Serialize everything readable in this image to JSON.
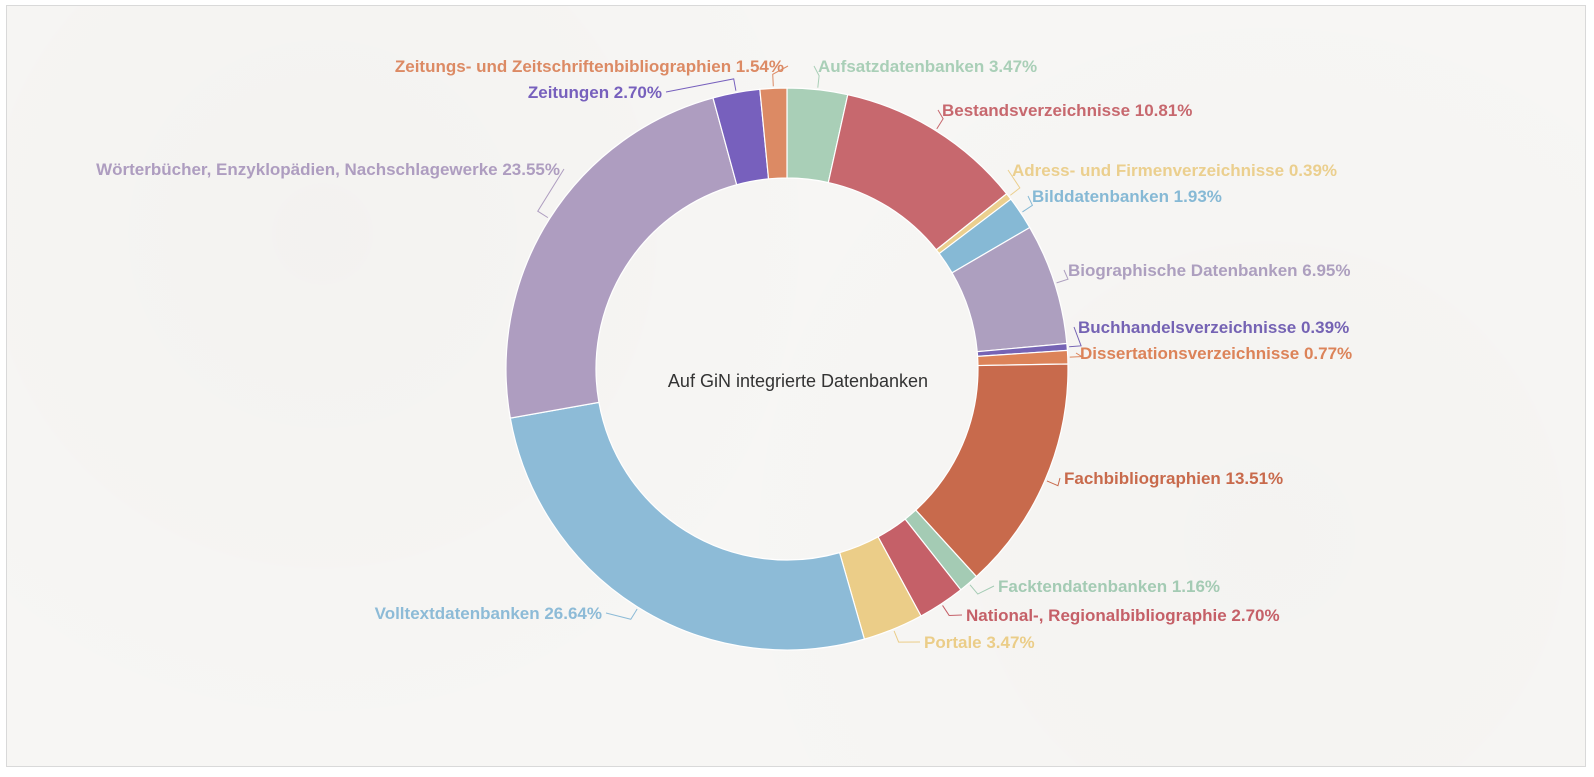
{
  "chart_data": {
    "type": "pie",
    "title": "Auf GiN integrierte Datenbanken",
    "slices": [
      {
        "label": "Aufsatzdatenbanken",
        "value": 3.47,
        "display": "Aufsatzdatenbanken 3.47%",
        "color": "#a9cfb7"
      },
      {
        "label": "Bestandsverzeichnisse",
        "value": 10.81,
        "display": "Bestandsverzeichnisse 10.81%",
        "color": "#c7686e"
      },
      {
        "label": "Adress- und Firmenverzeichnisse",
        "value": 0.39,
        "display": "Adress- und Firmenverzeichnisse 0.39%",
        "color": "#ebcf8e"
      },
      {
        "label": "Bilddatenbanken",
        "value": 1.93,
        "display": "Bilddatenbanken 1.93%",
        "color": "#86b9d5"
      },
      {
        "label": "Biographische Datenbanken",
        "value": 6.95,
        "display": "Biographische Datenbanken 6.95%",
        "color": "#ad9fbf"
      },
      {
        "label": "Buchhandelsverzeichnisse",
        "value": 0.39,
        "display": "Buchhandelsverzeichnisse 0.39%",
        "color": "#7563b4"
      },
      {
        "label": "Dissertationsverzeichnisse",
        "value": 0.77,
        "display": "Dissertationsverzeichnisse 0.77%",
        "color": "#dc8359"
      },
      {
        "label": "Fachbibliographien",
        "value": 13.51,
        "display": "Fachbibliographien 13.51%",
        "color": "#c86a4c"
      },
      {
        "label": "Facktendatenbanken",
        "value": 1.16,
        "display": "Facktendatenbanken 1.16%",
        "color": "#a4cbb4"
      },
      {
        "label": "National-, Regionalbibliographie",
        "value": 2.7,
        "display": "National-, Regionalbibliographie 2.70%",
        "color": "#c56068"
      },
      {
        "label": "Portale",
        "value": 3.47,
        "display": "Portale 3.47%",
        "color": "#ebcd88"
      },
      {
        "label": "Volltextdatenbanken",
        "value": 26.64,
        "display": "Volltextdatenbanken 26.64%",
        "color": "#8dbbd7"
      },
      {
        "label": "Wörterbücher, Enzyklopädien, Nachschlagewerke",
        "value": 23.55,
        "display": "Wörterbücher, Enzyklopädien, Nachschlagewerke 23.55%",
        "color": "#ae9dc0"
      },
      {
        "label": "Zeitungen",
        "value": 2.7,
        "display": "Zeitungen 2.70%",
        "color": "#7760bd"
      },
      {
        "label": "Zeitungs- und Zeitschriftenbibliographien",
        "value": 1.54,
        "display": "Zeitungs- und Zeitschriftenbibliographien 1.54%",
        "color": "#dc8a64"
      }
    ]
  }
}
